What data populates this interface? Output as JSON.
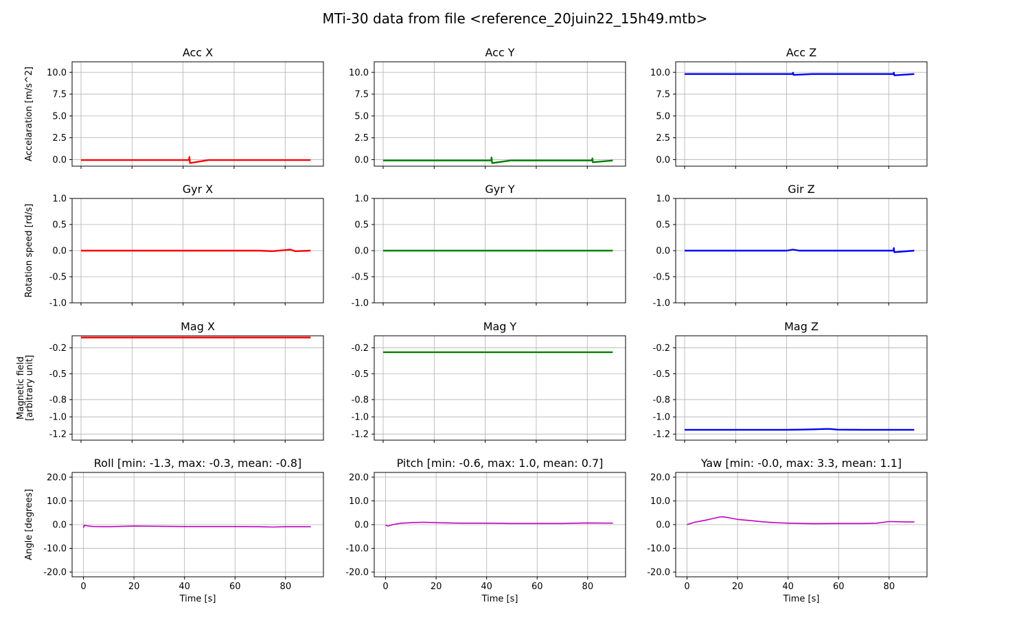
{
  "figure": {
    "title": "MTi-30 data from file <reference_20juin22_15h49.mtb>"
  },
  "chart_data": [
    {
      "type": "line",
      "title": "Acc X",
      "ylabel": "Accelaration [m/s^2]",
      "xlabel": "",
      "color": "#ff0000",
      "xlim": [
        -3.5,
        95
      ],
      "ylim": [
        -0.75,
        11.2
      ],
      "xticks": [
        0,
        20,
        40,
        60,
        80
      ],
      "show_xticklabels": false,
      "yticks": [
        0.0,
        2.5,
        5.0,
        7.5,
        10.0
      ],
      "yticklabels": [
        "0.0",
        "2.5",
        "5.0",
        "7.5",
        "10.0"
      ],
      "grid": true,
      "x": [
        0,
        10,
        20,
        30,
        40,
        42.3,
        42.5,
        42.7,
        50,
        60,
        70,
        80,
        81.5,
        82,
        90
      ],
      "y": [
        -0.05,
        -0.05,
        -0.05,
        -0.05,
        -0.05,
        -0.05,
        0.3,
        -0.4,
        -0.05,
        -0.05,
        -0.05,
        -0.05,
        -0.05,
        -0.05,
        -0.05
      ]
    },
    {
      "type": "line",
      "title": "Acc Y",
      "ylabel": "",
      "xlabel": "",
      "color": "#008000",
      "xlim": [
        -3.5,
        95
      ],
      "ylim": [
        -0.75,
        11.2
      ],
      "xticks": [
        0,
        20,
        40,
        60,
        80
      ],
      "show_xticklabels": false,
      "yticks": [
        0.0,
        2.5,
        5.0,
        7.5,
        10.0
      ],
      "yticklabels": [
        "0.0",
        "2.5",
        "5.0",
        "7.5",
        "10.0"
      ],
      "grid": true,
      "x": [
        0,
        10,
        20,
        30,
        40,
        42.3,
        42.5,
        42.7,
        50,
        60,
        70,
        80,
        81.8,
        82,
        82.2,
        90
      ],
      "y": [
        -0.1,
        -0.1,
        -0.1,
        -0.1,
        -0.1,
        -0.1,
        0.25,
        -0.4,
        -0.1,
        -0.1,
        -0.1,
        -0.1,
        -0.1,
        0.15,
        -0.3,
        -0.1
      ]
    },
    {
      "type": "line",
      "title": "Acc Z",
      "ylabel": "",
      "xlabel": "",
      "color": "#0000ff",
      "xlim": [
        -3.5,
        95
      ],
      "ylim": [
        -0.75,
        11.2
      ],
      "xticks": [
        0,
        20,
        40,
        60,
        80
      ],
      "show_xticklabels": false,
      "yticks": [
        0.0,
        2.5,
        5.0,
        7.5,
        10.0
      ],
      "yticklabels": [
        "0.0",
        "2.5",
        "5.0",
        "7.5",
        "10.0"
      ],
      "grid": true,
      "x": [
        0,
        10,
        20,
        30,
        40,
        42.3,
        42.5,
        42.7,
        50,
        60,
        70,
        80,
        81.8,
        82,
        82.2,
        90
      ],
      "y": [
        9.8,
        9.8,
        9.8,
        9.8,
        9.8,
        9.8,
        9.95,
        9.7,
        9.8,
        9.8,
        9.8,
        9.8,
        9.8,
        9.95,
        9.65,
        9.8
      ]
    },
    {
      "type": "line",
      "title": "Gyr X",
      "ylabel": "Rotation speed [rd/s]",
      "xlabel": "",
      "color": "#ff0000",
      "xlim": [
        -3.5,
        95
      ],
      "ylim": [
        -1.0,
        1.0
      ],
      "xticks": [
        0,
        20,
        40,
        60,
        80
      ],
      "show_xticklabels": false,
      "yticks": [
        -1.0,
        -0.5,
        0.0,
        0.5,
        1.0
      ],
      "yticklabels": [
        "-1.0",
        "-0.5",
        "0.0",
        "0.5",
        "1.0"
      ],
      "grid": true,
      "x": [
        0,
        10,
        20,
        30,
        40,
        50,
        60,
        70,
        75,
        80,
        82,
        84,
        90
      ],
      "y": [
        0.0,
        0.0,
        0.0,
        0.0,
        0.0,
        0.0,
        0.0,
        0.0,
        -0.01,
        0.01,
        0.02,
        -0.01,
        0.0
      ]
    },
    {
      "type": "line",
      "title": "Gyr Y",
      "ylabel": "",
      "xlabel": "",
      "color": "#008000",
      "xlim": [
        -3.5,
        95
      ],
      "ylim": [
        -1.0,
        1.0
      ],
      "xticks": [
        0,
        20,
        40,
        60,
        80
      ],
      "show_xticklabels": false,
      "yticks": [
        -1.0,
        -0.5,
        0.0,
        0.5,
        1.0
      ],
      "yticklabels": [
        "-1.0",
        "-0.5",
        "0.0",
        "0.5",
        "1.0"
      ],
      "grid": true,
      "x": [
        0,
        10,
        20,
        30,
        40,
        50,
        60,
        70,
        80,
        90
      ],
      "y": [
        0.0,
        0.0,
        0.0,
        0.0,
        0.0,
        0.0,
        0.0,
        0.0,
        0.0,
        0.0
      ]
    },
    {
      "type": "line",
      "title": "Gir Z",
      "ylabel": "",
      "xlabel": "",
      "color": "#0000ff",
      "xlim": [
        -3.5,
        95
      ],
      "ylim": [
        -1.0,
        1.0
      ],
      "xticks": [
        0,
        20,
        40,
        60,
        80
      ],
      "show_xticklabels": false,
      "yticks": [
        -1.0,
        -0.5,
        0.0,
        0.5,
        1.0
      ],
      "yticklabels": [
        "-1.0",
        "-0.5",
        "0.0",
        "0.5",
        "1.0"
      ],
      "grid": true,
      "x": [
        0,
        10,
        20,
        30,
        40,
        42.5,
        45,
        60,
        70,
        80,
        81.8,
        82,
        82.2,
        90
      ],
      "y": [
        0.0,
        0.0,
        0.0,
        0.0,
        0.0,
        0.02,
        0.0,
        0.0,
        0.0,
        0.0,
        0.0,
        0.05,
        -0.03,
        0.0
      ]
    },
    {
      "type": "line",
      "title": "Mag X",
      "ylabel": "Magnetic field\n[arbitrary unit]",
      "xlabel": "",
      "color": "#ff0000",
      "xlim": [
        -3.5,
        95
      ],
      "ylim": [
        -1.27,
        -0.06
      ],
      "xticks": [
        0,
        20,
        40,
        60,
        80
      ],
      "show_xticklabels": false,
      "yticks": [
        -1.2,
        -1.0,
        -0.8,
        -0.5,
        -0.2
      ],
      "yticklabels": [
        "-1.2",
        "-1.0",
        "-0.8",
        "-0.5",
        "-0.2"
      ],
      "grid": true,
      "x": [
        0,
        10,
        20,
        30,
        40,
        50,
        60,
        70,
        80,
        90
      ],
      "y": [
        -0.08,
        -0.08,
        -0.08,
        -0.08,
        -0.08,
        -0.08,
        -0.08,
        -0.08,
        -0.08,
        -0.08
      ]
    },
    {
      "type": "line",
      "title": "Mag Y",
      "ylabel": "",
      "xlabel": "",
      "color": "#008000",
      "xlim": [
        -3.5,
        95
      ],
      "ylim": [
        -1.27,
        -0.06
      ],
      "xticks": [
        0,
        20,
        40,
        60,
        80
      ],
      "show_xticklabels": false,
      "yticks": [
        -1.2,
        -1.0,
        -0.8,
        -0.5,
        -0.2
      ],
      "yticklabels": [
        "-1.2",
        "-1.0",
        "-0.8",
        "-0.5",
        "-0.2"
      ],
      "grid": true,
      "x": [
        0,
        10,
        20,
        30,
        40,
        50,
        60,
        70,
        80,
        90
      ],
      "y": [
        -0.25,
        -0.25,
        -0.25,
        -0.25,
        -0.25,
        -0.25,
        -0.25,
        -0.25,
        -0.25,
        -0.25
      ]
    },
    {
      "type": "line",
      "title": "Mag Z",
      "ylabel": "",
      "xlabel": "",
      "color": "#0000ff",
      "xlim": [
        -3.5,
        95
      ],
      "ylim": [
        -1.27,
        -0.06
      ],
      "xticks": [
        0,
        20,
        40,
        60,
        80
      ],
      "show_xticklabels": false,
      "yticks": [
        -1.2,
        -1.0,
        -0.8,
        -0.5,
        -0.2
      ],
      "yticklabels": [
        "-1.2",
        "-1.0",
        "-0.8",
        "-0.5",
        "-0.2"
      ],
      "grid": true,
      "x": [
        0,
        10,
        20,
        30,
        40,
        45,
        50,
        55,
        57,
        60,
        70,
        80,
        90
      ],
      "y": [
        -1.15,
        -1.15,
        -1.15,
        -1.15,
        -1.15,
        -1.148,
        -1.145,
        -1.14,
        -1.14,
        -1.148,
        -1.15,
        -1.15,
        -1.15
      ]
    },
    {
      "type": "line",
      "title": "Roll [min: -1.3, max: -0.3, mean: -0.8]",
      "ylabel": "Angle [degrees]",
      "xlabel": "Time [s]",
      "color": "#bf00bf",
      "xlim": [
        -4.5,
        95
      ],
      "ylim": [
        -22,
        22
      ],
      "xticks": [
        0,
        20,
        40,
        60,
        80
      ],
      "xticklabels": [
        "0",
        "20",
        "40",
        "60",
        "80"
      ],
      "show_xticklabels": true,
      "yticks": [
        -20,
        -10,
        0,
        10,
        20
      ],
      "yticklabels": [
        "-20.0",
        "-10.0",
        "0.0",
        "10.0",
        "20.0"
      ],
      "grid": true,
      "x": [
        0,
        0.3,
        0.6,
        1,
        2,
        4,
        10,
        20,
        30,
        40,
        50,
        60,
        70,
        75,
        80,
        90
      ],
      "y": [
        -1.3,
        -0.3,
        -0.5,
        -0.4,
        -0.6,
        -0.8,
        -0.9,
        -0.6,
        -0.7,
        -0.8,
        -0.8,
        -0.8,
        -0.9,
        -1.0,
        -0.9,
        -0.9
      ]
    },
    {
      "type": "line",
      "title": "Pitch [min: -0.6, max: 1.0, mean: 0.7]",
      "ylabel": "",
      "xlabel": "Time [s]",
      "color": "#bf00bf",
      "xlim": [
        -4.5,
        95
      ],
      "ylim": [
        -22,
        22
      ],
      "xticks": [
        0,
        20,
        40,
        60,
        80
      ],
      "xticklabels": [
        "0",
        "20",
        "40",
        "60",
        "80"
      ],
      "show_xticklabels": true,
      "yticks": [
        -20,
        -10,
        0,
        10,
        20
      ],
      "yticklabels": [
        "-20.0",
        "-10.0",
        "0.0",
        "10.0",
        "20.0"
      ],
      "grid": true,
      "x": [
        0,
        1,
        3,
        6,
        10,
        15,
        20,
        30,
        40,
        50,
        60,
        70,
        80,
        90
      ],
      "y": [
        -0.2,
        -0.6,
        0.0,
        0.6,
        0.8,
        1.0,
        0.8,
        0.6,
        0.6,
        0.5,
        0.5,
        0.5,
        0.7,
        0.6
      ]
    },
    {
      "type": "line",
      "title": "Yaw [min: -0.0, max: 3.3, mean: 1.1]",
      "ylabel": "",
      "xlabel": "Time [s]",
      "color": "#bf00bf",
      "xlim": [
        -4.5,
        95
      ],
      "ylim": [
        -22,
        22
      ],
      "xticks": [
        0,
        20,
        40,
        60,
        80
      ],
      "xticklabels": [
        "0",
        "20",
        "40",
        "60",
        "80"
      ],
      "show_xticklabels": true,
      "yticks": [
        -20,
        -10,
        0,
        10,
        20
      ],
      "yticklabels": [
        "-20.0",
        "-10.0",
        "0.0",
        "10.0",
        "20.0"
      ],
      "grid": true,
      "x": [
        0,
        3,
        7,
        10,
        13,
        14,
        16,
        20,
        25,
        30,
        35,
        40,
        50,
        60,
        70,
        75,
        78,
        80,
        85,
        90
      ],
      "y": [
        0.0,
        1.0,
        1.8,
        2.5,
        3.2,
        3.3,
        3.0,
        2.2,
        1.7,
        1.2,
        0.8,
        0.6,
        0.4,
        0.5,
        0.5,
        0.6,
        1.0,
        1.3,
        1.2,
        1.1
      ]
    }
  ]
}
